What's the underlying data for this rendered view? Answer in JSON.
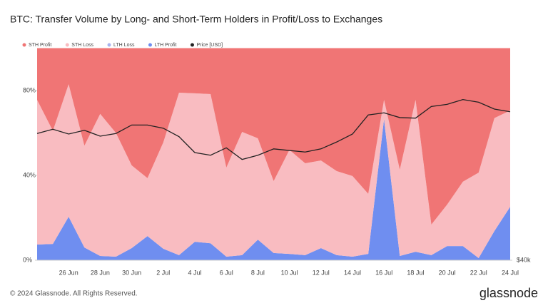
{
  "chart_data": {
    "type": "stacked_area",
    "title": "BTC: Transfer Volume by Long- and Short-Term Holders in Profit/Loss to Exchanges",
    "footer": "© 2024 Glassnode. All Rights Reserved.",
    "brand": "glassnode",
    "categories": [
      null,
      null,
      "26 Jun",
      null,
      "28 Jun",
      null,
      "30 Jun",
      null,
      "2 Jul",
      null,
      "4 Jul",
      null,
      "6 Jul",
      null,
      "8 Jul",
      null,
      "10 Jul",
      null,
      "12 Jul",
      null,
      "14 Jul",
      null,
      "16 Jul",
      null,
      "18 Jul",
      null,
      "20 Jul",
      null,
      "22 Jul",
      null,
      "24 Jul"
    ],
    "series": [
      {
        "name": "STH Profit",
        "color": "#f07575",
        "values": [
          24.4,
          39,
          17,
          46,
          31,
          40,
          55.3,
          61.3,
          44.5,
          21,
          21.3,
          21.7,
          56.3,
          39.5,
          42.5,
          62.7,
          48,
          54.3,
          53,
          58,
          60.3,
          68.7,
          24.4,
          57.3,
          24.4,
          83.2,
          73.8,
          63,
          58.7,
          33,
          29.4
        ]
      },
      {
        "name": "STH Loss",
        "color": "#f9bcc1",
        "values": [
          68.2,
          53.3,
          62.5,
          48,
          67,
          58.3,
          39,
          27.3,
          50.1,
          76.6,
          70,
          70.3,
          42,
          58.1,
          47.8,
          33.9,
          49,
          43.3,
          41.3,
          39.6,
          38,
          28.3,
          9.1,
          40.7,
          71.6,
          14.4,
          19.5,
          30.3,
          40.3,
          53.2,
          45.4
        ]
      },
      {
        "name": "LTH Loss",
        "color": "#a9b4ef",
        "values": [
          0,
          0,
          0,
          0,
          0,
          0,
          0,
          0,
          0,
          0,
          0,
          0,
          0,
          0,
          0,
          0,
          0,
          0,
          0,
          0,
          0,
          0,
          0,
          0,
          0,
          0,
          0,
          0,
          0,
          0,
          0
        ]
      },
      {
        "name": "LTH Profit",
        "color": "#6f8ef0",
        "values": [
          7.4,
          7.7,
          20.5,
          6,
          2,
          1.7,
          5.7,
          11.4,
          5.4,
          2.4,
          8.7,
          8,
          1.7,
          2.4,
          9.7,
          3.4,
          3,
          2.4,
          5.7,
          2.4,
          1.7,
          3,
          66.5,
          2,
          4,
          2.4,
          6.7,
          6.7,
          1,
          13.8,
          25.2
        ]
      },
      {
        "name": "Price [USD]",
        "color": "#222222",
        "axis": "y2",
        "values": [
          63900,
          64700,
          63800,
          64500,
          63400,
          63900,
          65500,
          65500,
          64900,
          63300,
          60300,
          59800,
          61200,
          59000,
          59800,
          61000,
          60700,
          60400,
          61000,
          62300,
          63800,
          67400,
          67800,
          66900,
          66800,
          69000,
          69400,
          70300,
          69800,
          68500,
          68000
        ]
      }
    ],
    "ylim": [
      0,
      100
    ],
    "yticks": [
      {
        "value": 0,
        "label": "0%"
      },
      {
        "value": 40,
        "label": "40%"
      },
      {
        "value": 80,
        "label": "80%"
      }
    ],
    "y2lim": [
      40000,
      80000
    ],
    "y2ticks": [
      {
        "value": 40000,
        "label": "$40k"
      }
    ],
    "grid": false
  }
}
